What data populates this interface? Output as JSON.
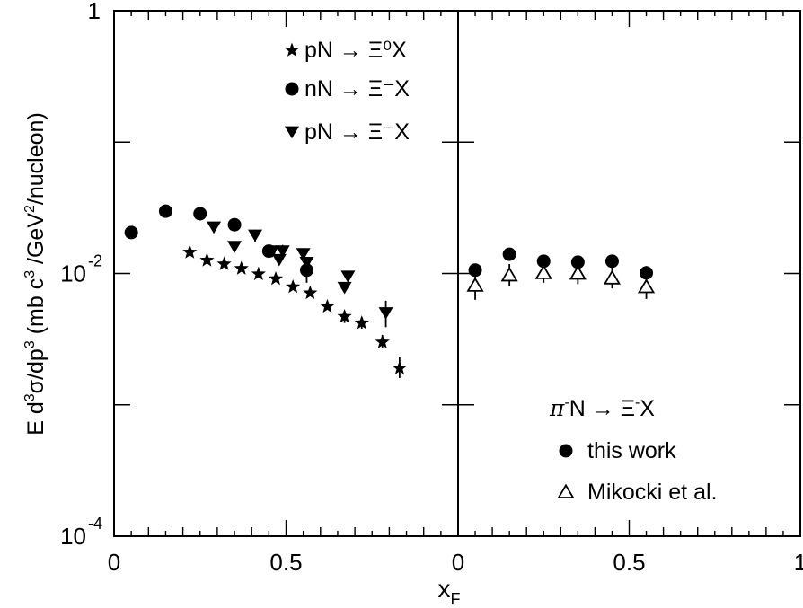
{
  "chart_data": {
    "type": "scatter",
    "y_scale": "log",
    "ylim": [
      0.0001,
      1
    ],
    "ylabel": {
      "main": "E d",
      "sup1": "3",
      "mid1": "σ/dp",
      "sup2": "3",
      "mid2": " (mb c",
      "sup3": "3",
      "mid3": " /GeV",
      "sup4": "2",
      "end": "/nucleon)"
    },
    "xlabel": {
      "main": "x",
      "sub": "F"
    },
    "y_ticks": [
      {
        "value": 1,
        "base": "1",
        "exp": ""
      },
      {
        "value": 0.01,
        "base": "10",
        "exp": "-2"
      },
      {
        "value": 0.0001,
        "base": "10",
        "exp": "-4"
      }
    ],
    "panels": [
      {
        "xlim": [
          0,
          1
        ],
        "x_tick_labels": [
          {
            "value": 0,
            "label": "0"
          },
          {
            "value": 0.5,
            "label": "0.5"
          }
        ],
        "legend_position": "top-right",
        "legend": [
          {
            "marker": "star",
            "label": "pN → Ξ⁰X"
          },
          {
            "marker": "circle",
            "label": "nN → Ξ⁻X"
          },
          {
            "marker": "triangle-down",
            "label": "pN → Ξ⁻X"
          }
        ],
        "series": [
          {
            "marker": "star",
            "points": [
              {
                "x": 0.22,
                "y": 0.0145
              },
              {
                "x": 0.27,
                "y": 0.0126
              },
              {
                "x": 0.32,
                "y": 0.0118
              },
              {
                "x": 0.37,
                "y": 0.0109
              },
              {
                "x": 0.42,
                "y": 0.0099
              },
              {
                "x": 0.47,
                "y": 0.0091
              },
              {
                "x": 0.52,
                "y": 0.0079
              },
              {
                "x": 0.57,
                "y": 0.0071
              },
              {
                "x": 0.62,
                "y": 0.0056
              },
              {
                "x": 0.67,
                "y": 0.0047,
                "err": [
                  0.0042,
                  0.0052
                ]
              },
              {
                "x": 0.72,
                "y": 0.0042,
                "err": [
                  0.0038,
                  0.0046
                ]
              },
              {
                "x": 0.78,
                "y": 0.003,
                "err": [
                  0.0027,
                  0.0034
                ]
              },
              {
                "x": 0.83,
                "y": 0.0019,
                "err": [
                  0.0016,
                  0.0023
                ]
              }
            ]
          },
          {
            "marker": "circle",
            "points": [
              {
                "x": 0.05,
                "y": 0.0205
              },
              {
                "x": 0.15,
                "y": 0.0298
              },
              {
                "x": 0.25,
                "y": 0.0285
              },
              {
                "x": 0.35,
                "y": 0.0235
              },
              {
                "x": 0.45,
                "y": 0.0148,
                "err": [
                  0.0135,
                  0.0162
                ]
              },
              {
                "x": 0.56,
                "y": 0.0106,
                "err": [
                  0.0085,
                  0.0132
                ]
              }
            ]
          },
          {
            "marker": "triangle-down",
            "points": [
              {
                "x": 0.29,
                "y": 0.0225,
                "err": [
                  0.0205,
                  0.0245
                ]
              },
              {
                "x": 0.35,
                "y": 0.016
              },
              {
                "x": 0.41,
                "y": 0.0195,
                "err": [
                  0.0175,
                  0.0215
                ]
              },
              {
                "x": 0.46,
                "y": 0.0148
              },
              {
                "x": 0.49,
                "y": 0.0148,
                "err": [
                  0.013,
                  0.0165
                ]
              },
              {
                "x": 0.48,
                "y": 0.0127
              },
              {
                "x": 0.55,
                "y": 0.0141
              },
              {
                "x": 0.56,
                "y": 0.0121
              },
              {
                "x": 0.68,
                "y": 0.0095
              },
              {
                "x": 0.67,
                "y": 0.0078
              },
              {
                "x": 0.79,
                "y": 0.005,
                "err": [
                  0.0039,
                  0.0062
                ]
              }
            ]
          }
        ]
      },
      {
        "xlim": [
          0,
          1
        ],
        "x_tick_labels": [
          {
            "value": 0,
            "label": "0"
          },
          {
            "value": 0.5,
            "label": "0.5"
          },
          {
            "value": 1,
            "label": "1"
          }
        ],
        "legend_position": "bottom-right",
        "legend_title": {
          "pi": "π",
          "sup": "-",
          "rest": "N → Ξ",
          "sup2": "-",
          "end": "X"
        },
        "legend": [
          {
            "marker": "circle",
            "label": "this work"
          },
          {
            "marker": "triangle-up-open",
            "label": "Mikocki et al."
          }
        ],
        "series": [
          {
            "marker": "circle",
            "points": [
              {
                "x": 0.05,
                "y": 0.0106
              },
              {
                "x": 0.15,
                "y": 0.014
              },
              {
                "x": 0.25,
                "y": 0.0124
              },
              {
                "x": 0.35,
                "y": 0.0122
              },
              {
                "x": 0.45,
                "y": 0.0124,
                "err": [
                  0.0114,
                  0.0135
                ]
              },
              {
                "x": 0.55,
                "y": 0.0101,
                "err": [
                  0.009,
                  0.0114
                ]
              }
            ]
          },
          {
            "marker": "triangle-up-open",
            "points": [
              {
                "x": 0.05,
                "y": 0.0081,
                "err": [
                  0.0063,
                  0.0104
                ]
              },
              {
                "x": 0.15,
                "y": 0.0097,
                "err": [
                  0.008,
                  0.0118
                ]
              },
              {
                "x": 0.25,
                "y": 0.0101,
                "err": [
                  0.0085,
                  0.0121
                ]
              },
              {
                "x": 0.35,
                "y": 0.01,
                "err": [
                  0.0083,
                  0.0121
                ]
              },
              {
                "x": 0.45,
                "y": 0.0092,
                "err": [
                  0.0077,
                  0.0111
                ]
              },
              {
                "x": 0.55,
                "y": 0.0079,
                "err": [
                  0.0064,
                  0.0098
                ]
              }
            ]
          }
        ]
      }
    ]
  }
}
